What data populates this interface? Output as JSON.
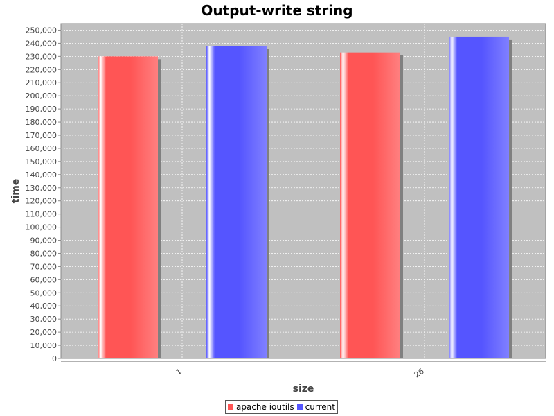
{
  "chart_data": {
    "type": "bar",
    "title": "Output-write string",
    "xlabel": "size",
    "ylabel": "time",
    "categories": [
      "1",
      "26"
    ],
    "series": [
      {
        "name": "apache ioutils",
        "values": [
          230000,
          233000
        ],
        "color": "#ff5555"
      },
      {
        "name": "current",
        "values": [
          238000,
          245000
        ],
        "color": "#5555ff"
      }
    ],
    "ylim": [
      0,
      255000
    ],
    "ytick_step": 10000,
    "grid": true,
    "legend_position": "bottom",
    "plot_background": "#c0c0c0"
  }
}
